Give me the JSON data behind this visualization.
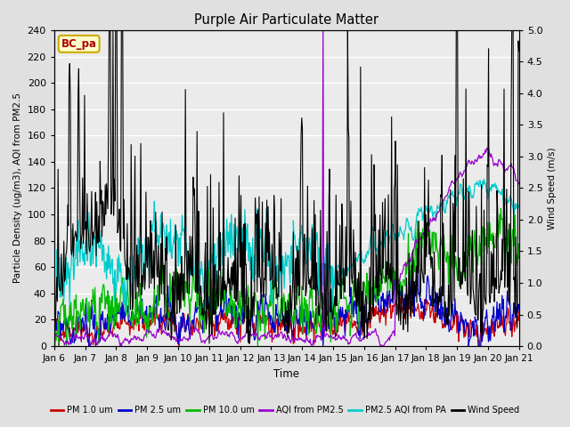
{
  "title": "Purple Air Particulate Matter",
  "xlabel": "Time",
  "ylabel_left": "Particle Density (ug/m3), AQI from PM2.5",
  "ylabel_right": "Wind Speed (m/s)",
  "ylim_left": [
    0,
    240
  ],
  "ylim_right": [
    0.0,
    5.0
  ],
  "station_label": "BC_pa",
  "x_tick_labels": [
    "Jan 6",
    "Jan 7",
    "Jan 8",
    "Jan 9",
    "Jan 10",
    "Jan 11",
    "Jan 12",
    "Jan 13",
    "Jan 14",
    "Jan 15",
    "Jan 16",
    "Jan 17",
    "Jan 18",
    "Jan 19",
    "Jan 20",
    "Jan 21"
  ],
  "legend_entries": [
    {
      "label": "PM 1.0 um",
      "color": "#cc0000"
    },
    {
      "label": "PM 2.5 um",
      "color": "#0000cc"
    },
    {
      "label": "PM 10.0 um",
      "color": "#00bb00"
    },
    {
      "label": "AQI from PM2.5",
      "color": "#9900cc"
    },
    {
      "label": "PM2.5 AQI from PA",
      "color": "#00cccc"
    },
    {
      "label": "Wind Speed",
      "color": "#000000"
    }
  ],
  "bg_color": "#e0e0e0",
  "plot_bg_color": "#ebebeb",
  "grid_color": "#ffffff",
  "yticks_left": [
    0,
    20,
    40,
    60,
    80,
    100,
    120,
    140,
    160,
    180,
    200,
    220,
    240
  ],
  "yticks_right": [
    0.0,
    0.5,
    1.0,
    1.5,
    2.0,
    2.5,
    3.0,
    3.5,
    4.0,
    4.5,
    5.0
  ],
  "n_points": 720
}
